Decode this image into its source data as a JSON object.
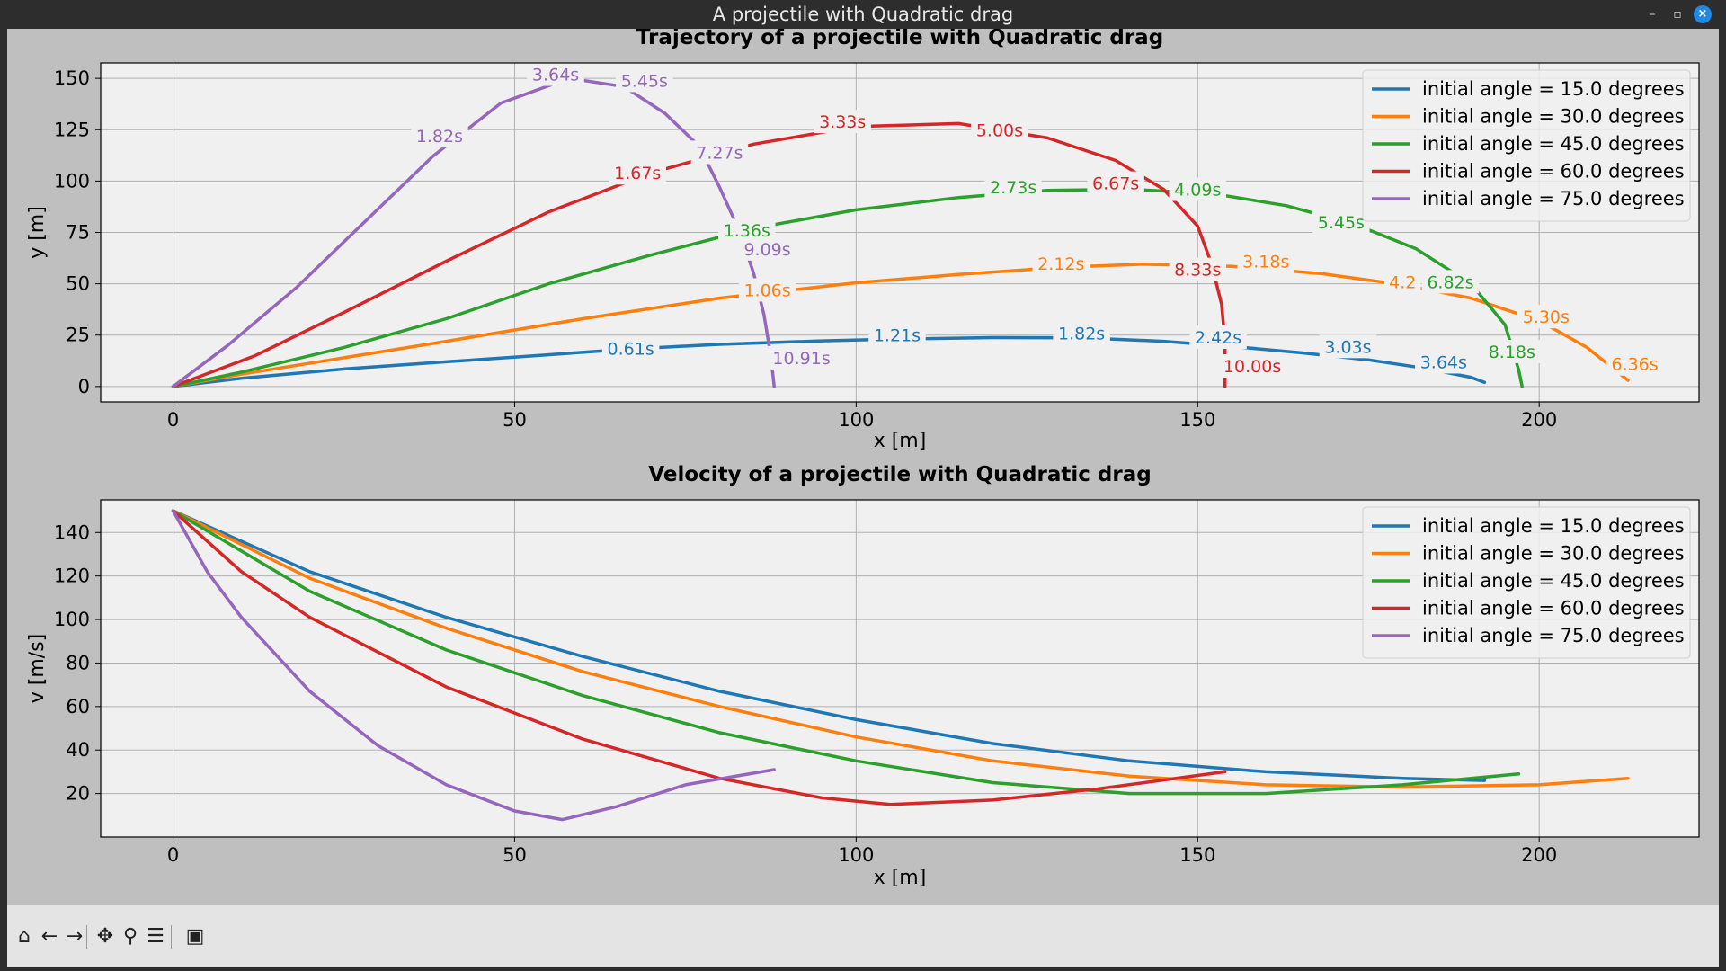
{
  "window": {
    "title": "A projectile with Quadratic drag",
    "minimize_icon": "minimize-icon",
    "maximize_icon": "maximize-icon",
    "close_icon": "close-icon"
  },
  "toolbar": {
    "buttons": [
      {
        "name": "home-button",
        "icon": "home-icon",
        "glyph": "⌂"
      },
      {
        "name": "back-button",
        "icon": "arrow-left-icon",
        "glyph": "←"
      },
      {
        "name": "forward-button",
        "icon": "arrow-right-icon",
        "glyph": "→"
      },
      {
        "name": "pan-button",
        "icon": "move-icon",
        "glyph": "✥"
      },
      {
        "name": "zoom-button",
        "icon": "magnifier-icon",
        "glyph": "⚲"
      },
      {
        "name": "configure-button",
        "icon": "sliders-icon",
        "glyph": "☰"
      },
      {
        "name": "save-button",
        "icon": "floppy-disk-icon",
        "glyph": "▣"
      }
    ]
  },
  "colors": {
    "c15": "#1f77b4",
    "c30": "#ff7f0e",
    "c45": "#2ca02c",
    "c60": "#d62728",
    "c75": "#9467bd",
    "axes_bg": "#f0f0f0",
    "figure_bg": "#bfbfbf"
  },
  "chart_data": [
    {
      "type": "line",
      "title": "Trajectory of a projectile with Quadratic drag",
      "xlabel": "x [m]",
      "ylabel": "y [m]",
      "xlim": [
        -10.6,
        223.4
      ],
      "ylim": [
        -7.5,
        157.5
      ],
      "xticks": [
        0,
        50,
        100,
        150,
        200
      ],
      "yticks": [
        0,
        25,
        50,
        75,
        100,
        125,
        150
      ],
      "grid": true,
      "legend": "top-right",
      "series": [
        {
          "name": "initial angle = 15.0 degrees",
          "color_key": "c15",
          "points": [
            [
              0,
              0
            ],
            [
              10,
              4
            ],
            [
              25,
              8.5
            ],
            [
              40,
              12
            ],
            [
              53,
              15
            ],
            [
              67,
              18.3
            ],
            [
              80,
              20.5
            ],
            [
              95,
              22.2
            ],
            [
              105,
              23
            ],
            [
              120,
              23.8
            ],
            [
              133,
              23.7
            ],
            [
              145,
              22
            ],
            [
              155,
              19.5
            ],
            [
              165,
              16.5
            ],
            [
              175,
              13
            ],
            [
              183,
              9
            ],
            [
              190,
              4.5
            ],
            [
              192,
              2
            ]
          ],
          "labels": [
            [
              67,
              18.5,
              "0.61s"
            ],
            [
              106,
              25,
              "1.21s"
            ],
            [
              133,
              26,
              "1.82s"
            ],
            [
              153,
              24,
              "2.42s"
            ],
            [
              172,
              19.5,
              "3.03s"
            ],
            [
              186,
              12,
              "3.64s"
            ]
          ]
        },
        {
          "name": "initial angle = 30.0 degrees",
          "color_key": "c30",
          "points": [
            [
              0,
              0
            ],
            [
              10,
              6
            ],
            [
              25,
              14
            ],
            [
              40,
              22
            ],
            [
              60,
              33
            ],
            [
              80,
              43
            ],
            [
              100,
              50.5
            ],
            [
              115,
              54.5
            ],
            [
              130,
              58
            ],
            [
              142,
              59.5
            ],
            [
              155,
              58.5
            ],
            [
              168,
              55
            ],
            [
              180,
              49.5
            ],
            [
              190,
              43
            ],
            [
              200,
              32
            ],
            [
              207,
              19
            ],
            [
              213,
              3
            ]
          ],
          "labels": [
            [
              87,
              47,
              "1.06s"
            ],
            [
              130,
              60,
              "2.12s"
            ],
            [
              160,
              61,
              "3.18s"
            ],
            [
              180,
              51,
              "4.2"
            ],
            [
              201,
              34,
              "5.30s"
            ],
            [
              214,
              11,
              "6.36s"
            ]
          ]
        },
        {
          "name": "initial angle = 45.0 degrees",
          "color_key": "c45",
          "points": [
            [
              0,
              0
            ],
            [
              10,
              7
            ],
            [
              25,
              19
            ],
            [
              40,
              33
            ],
            [
              55,
              50
            ],
            [
              70,
              64
            ],
            [
              85,
              77
            ],
            [
              100,
              86
            ],
            [
              115,
              92
            ],
            [
              128,
              95.5
            ],
            [
              140,
              96
            ],
            [
              152,
              94
            ],
            [
              163,
              88
            ],
            [
              173,
              79
            ],
            [
              182,
              67
            ],
            [
              190,
              50
            ],
            [
              195,
              30
            ],
            [
              197,
              8
            ],
            [
              197.5,
              0
            ]
          ],
          "labels": [
            [
              84,
              76,
              "1.36s"
            ],
            [
              123,
              97,
              "2.73s"
            ],
            [
              150,
              96,
              "4.09s"
            ],
            [
              171,
              80,
              "5.45s"
            ],
            [
              187,
              51,
              "6.82s"
            ],
            [
              196,
              17,
              "8.18s"
            ]
          ]
        },
        {
          "name": "initial angle = 60.0 degrees",
          "color_key": "c60",
          "points": [
            [
              0,
              0
            ],
            [
              12,
              15
            ],
            [
              25,
              36
            ],
            [
              40,
              61
            ],
            [
              55,
              85
            ],
            [
              70,
              104
            ],
            [
              85,
              118
            ],
            [
              100,
              126.5
            ],
            [
              115,
              128
            ],
            [
              128,
              121
            ],
            [
              138,
              110
            ],
            [
              145,
              96
            ],
            [
              150,
              78
            ],
            [
              152,
              60
            ],
            [
              153.5,
              40
            ],
            [
              154,
              22
            ],
            [
              154,
              10
            ],
            [
              154,
              0
            ]
          ],
          "labels": [
            [
              68,
              104,
              "1.67s"
            ],
            [
              98,
              129,
              "3.33s"
            ],
            [
              121,
              125,
              "5.00s"
            ],
            [
              138,
              99,
              "6.67s"
            ],
            [
              150,
              57,
              "8.33s"
            ],
            [
              158,
              10,
              "10.00s"
            ]
          ]
        },
        {
          "name": "initial angle = 75.0 degrees",
          "color_key": "c75",
          "points": [
            [
              0,
              0
            ],
            [
              8,
              20
            ],
            [
              18,
              48
            ],
            [
              28,
              80
            ],
            [
              38,
              112
            ],
            [
              48,
              138
            ],
            [
              58,
              150
            ],
            [
              66,
              146
            ],
            [
              72,
              133
            ],
            [
              77,
              117
            ],
            [
              80,
              97
            ],
            [
              83,
              75
            ],
            [
              85,
              55
            ],
            [
              86.5,
              35
            ],
            [
              87.5,
              15
            ],
            [
              88,
              0
            ]
          ],
          "labels": [
            [
              39,
              122,
              "1.82s"
            ],
            [
              56,
              152,
              "3.64s"
            ],
            [
              69,
              149,
              "5.45s"
            ],
            [
              80,
              114,
              "7.27s"
            ],
            [
              87,
              67,
              "9.09s"
            ],
            [
              92,
              14,
              "10.91s"
            ]
          ]
        }
      ]
    },
    {
      "type": "line",
      "title": "Velocity of a projectile with Quadratic drag",
      "xlabel": "x [m]",
      "ylabel": "v [m/s]",
      "xlim": [
        -10.6,
        223.4
      ],
      "ylim": [
        0,
        155
      ],
      "xticks": [
        0,
        50,
        100,
        150,
        200
      ],
      "yticks": [
        20,
        40,
        60,
        80,
        100,
        120,
        140
      ],
      "grid": true,
      "legend": "top-right",
      "series": [
        {
          "name": "initial angle = 15.0 degrees",
          "color_key": "c15",
          "points": [
            [
              0,
              150
            ],
            [
              20,
              122
            ],
            [
              40,
              101
            ],
            [
              60,
              83
            ],
            [
              80,
              67
            ],
            [
              100,
              54
            ],
            [
              120,
              43
            ],
            [
              140,
              35
            ],
            [
              160,
              30
            ],
            [
              180,
              27
            ],
            [
              192,
              26
            ]
          ]
        },
        {
          "name": "initial angle = 30.0 degrees",
          "color_key": "c30",
          "points": [
            [
              0,
              150
            ],
            [
              20,
              119
            ],
            [
              40,
              96
            ],
            [
              60,
              76
            ],
            [
              80,
              60
            ],
            [
              100,
              46
            ],
            [
              120,
              35
            ],
            [
              140,
              28
            ],
            [
              160,
              24
            ],
            [
              180,
              23
            ],
            [
              200,
              24
            ],
            [
              213,
              27
            ]
          ]
        },
        {
          "name": "initial angle = 45.0 degrees",
          "color_key": "c45",
          "points": [
            [
              0,
              150
            ],
            [
              20,
              113
            ],
            [
              40,
              86
            ],
            [
              60,
              65
            ],
            [
              80,
              48
            ],
            [
              100,
              35
            ],
            [
              120,
              25
            ],
            [
              140,
              20
            ],
            [
              160,
              20
            ],
            [
              180,
              24
            ],
            [
              197,
              29
            ]
          ]
        },
        {
          "name": "initial angle = 60.0 degrees",
          "color_key": "c60",
          "points": [
            [
              0,
              150
            ],
            [
              10,
              122
            ],
            [
              20,
              101
            ],
            [
              40,
              69
            ],
            [
              60,
              45
            ],
            [
              80,
              27
            ],
            [
              95,
              18
            ],
            [
              105,
              15
            ],
            [
              120,
              17
            ],
            [
              135,
              22
            ],
            [
              154,
              30
            ]
          ]
        },
        {
          "name": "initial angle = 75.0 degrees",
          "color_key": "c75",
          "points": [
            [
              0,
              150
            ],
            [
              5,
              122
            ],
            [
              10,
              101
            ],
            [
              20,
              67
            ],
            [
              30,
              42
            ],
            [
              40,
              24
            ],
            [
              50,
              12
            ],
            [
              57,
              8
            ],
            [
              65,
              14
            ],
            [
              75,
              24
            ],
            [
              88,
              31
            ]
          ]
        }
      ]
    }
  ]
}
